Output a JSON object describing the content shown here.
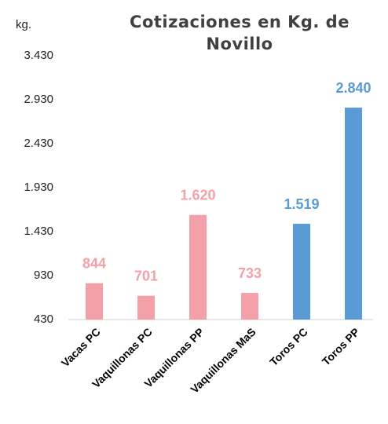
{
  "chart_data": {
    "type": "bar",
    "title": "Cotizaciones en Kg. de Novillo",
    "ylabel": "kg.",
    "categories": [
      "Vacas PC",
      "Vaquillonas PC",
      "Vaquillonas PP",
      "Vaquillonas MaS",
      "Toros PC",
      "Toros PP"
    ],
    "values": [
      844,
      701,
      1620,
      733,
      1519,
      2840
    ],
    "value_labels": [
      "844",
      "701",
      "1.620",
      "733",
      "1.519",
      "2.840"
    ],
    "colors": [
      "#f4a0a8",
      "#f4a0a8",
      "#f4a0a8",
      "#f4a0a8",
      "#5b9bd5",
      "#5b9bd5"
    ],
    "ylim": [
      430,
      3430
    ],
    "yticks": [
      430,
      930,
      {
        "value": 1430,
        "label": "1.430"
      },
      {
        "value": 1930,
        "label": "1.930"
      },
      {
        "value": 2430,
        "label": "2.430"
      },
      {
        "value": 2930,
        "label": "2.930"
      },
      {
        "value": 3430,
        "label": "3.430"
      }
    ],
    "grid": false
  }
}
